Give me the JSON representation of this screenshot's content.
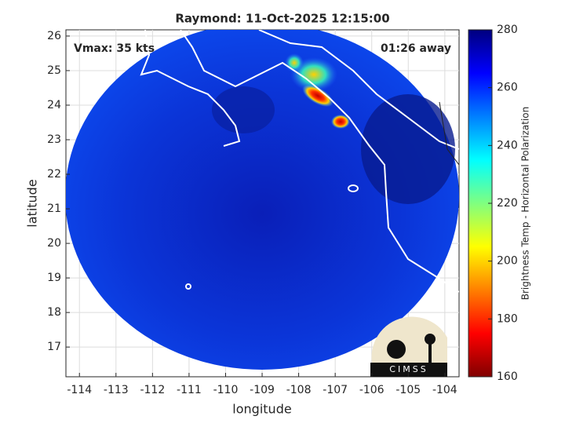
{
  "chart_data": {
    "type": "map",
    "title": "Raymond: 11-Oct-2025 12:15:00",
    "annotations": [
      "Vmax: 35 kts",
      "01:26 away"
    ],
    "xlabel": "longitude",
    "ylabel": "latitude",
    "xlim": [
      -114.37,
      -103.61
    ],
    "ylim": [
      16.14,
      26.18
    ],
    "xticks": [
      -114,
      -113,
      -112,
      -111,
      -110,
      -109,
      -108,
      -107,
      -106,
      -105,
      -104
    ],
    "yticks": [
      17,
      18,
      19,
      20,
      21,
      22,
      23,
      24,
      25,
      26
    ],
    "grid": true,
    "colorbar": {
      "label": "Brightness Temp - Horizontal Polarization",
      "lim": [
        160,
        280
      ],
      "ticks": [
        160,
        180,
        200,
        220,
        240,
        260,
        280
      ]
    },
    "logo": "CIMSS"
  }
}
